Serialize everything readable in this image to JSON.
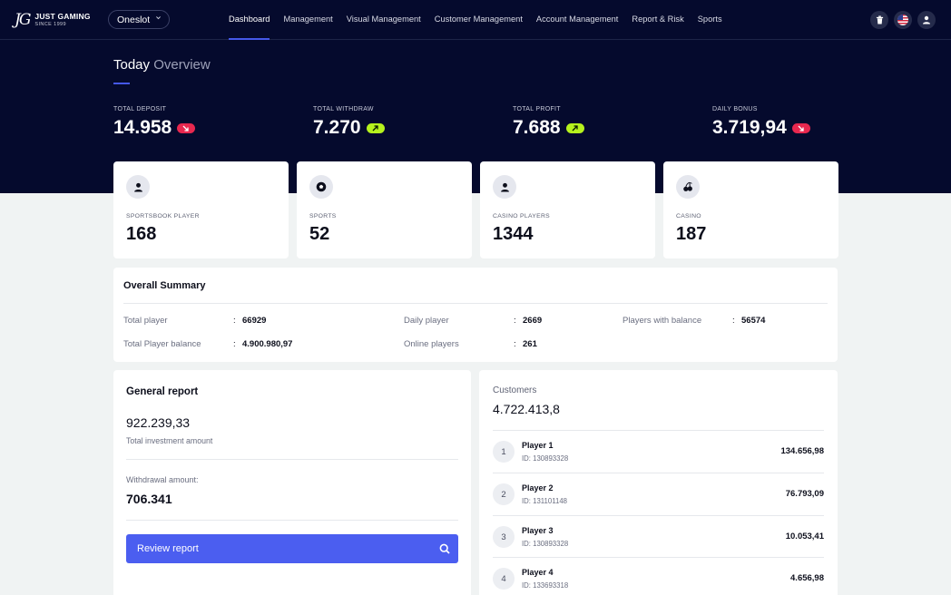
{
  "header": {
    "logo_mark": "JG",
    "brand_name": "JUST GAMING",
    "brand_tagline": "SINCE 1999",
    "selector_value": "Oneslot",
    "menu": [
      "Dashboard",
      "Management",
      "Visual Management",
      "Customer Management",
      "Account Management",
      "Report & Risk",
      "Sports"
    ],
    "icons": [
      "trash-icon",
      "us-flag-icon",
      "user-icon"
    ]
  },
  "overview": {
    "title_strong": "Today",
    "title_light": "Overview",
    "stats": [
      {
        "label": "TOTAL DEPOSIT",
        "value": "14.958",
        "trend": "down"
      },
      {
        "label": "TOTAL WITHDRAW",
        "value": "7.270",
        "trend": "up"
      },
      {
        "label": "TOTAL PROFIT",
        "value": "7.688",
        "trend": "up"
      },
      {
        "label": "DAILY BONUS",
        "value": "3.719,94",
        "trend": "down"
      }
    ]
  },
  "kpis": [
    {
      "icon": "person-icon",
      "label": "SPORTSBOOK PLAYER",
      "value": "168"
    },
    {
      "icon": "soccer-ball-icon",
      "label": "SPORTS",
      "value": "52"
    },
    {
      "icon": "person-icon",
      "label": "CASINO PLAYERS",
      "value": "1344"
    },
    {
      "icon": "cherries-icon",
      "label": "CASINO",
      "value": "187"
    }
  ],
  "summary": {
    "title": "Overall Summary",
    "items": [
      {
        "label": "Total player",
        "value": "66929"
      },
      {
        "label": "Daily player",
        "value": "2669"
      },
      {
        "label": "Players with balance",
        "value": "56574"
      },
      {
        "label": "Total Player balance",
        "value": "4.900.980,97"
      },
      {
        "label": "Online players",
        "value": "261"
      }
    ],
    "colon": ":"
  },
  "general_report": {
    "title": "General report",
    "investment_value": "922.239,33",
    "investment_label": "Total investment amount",
    "withdrawal_label": "Withdrawal amount:",
    "withdrawal_value": "706.341",
    "button_label": "Review report"
  },
  "customers": {
    "title": "Customers",
    "total": "4.722.413,8",
    "players": [
      {
        "rank": "1",
        "name": "Player 1",
        "id": "ID: 130893328",
        "amount": "134.656,98"
      },
      {
        "rank": "2",
        "name": "Player 2",
        "id": "ID: 131101148",
        "amount": "76.793,09"
      },
      {
        "rank": "3",
        "name": "Player 3",
        "id": "ID: 130893328",
        "amount": "10.053,41"
      },
      {
        "rank": "4",
        "name": "Player 4",
        "id": "ID: 133693318",
        "amount": "4.656,98"
      }
    ]
  },
  "colors": {
    "header_bg": "#050a2d",
    "accent": "#4558e8",
    "trend_up": "#b6f21d",
    "trend_down": "#e8284f",
    "page_bg": "#f0f3f3"
  }
}
